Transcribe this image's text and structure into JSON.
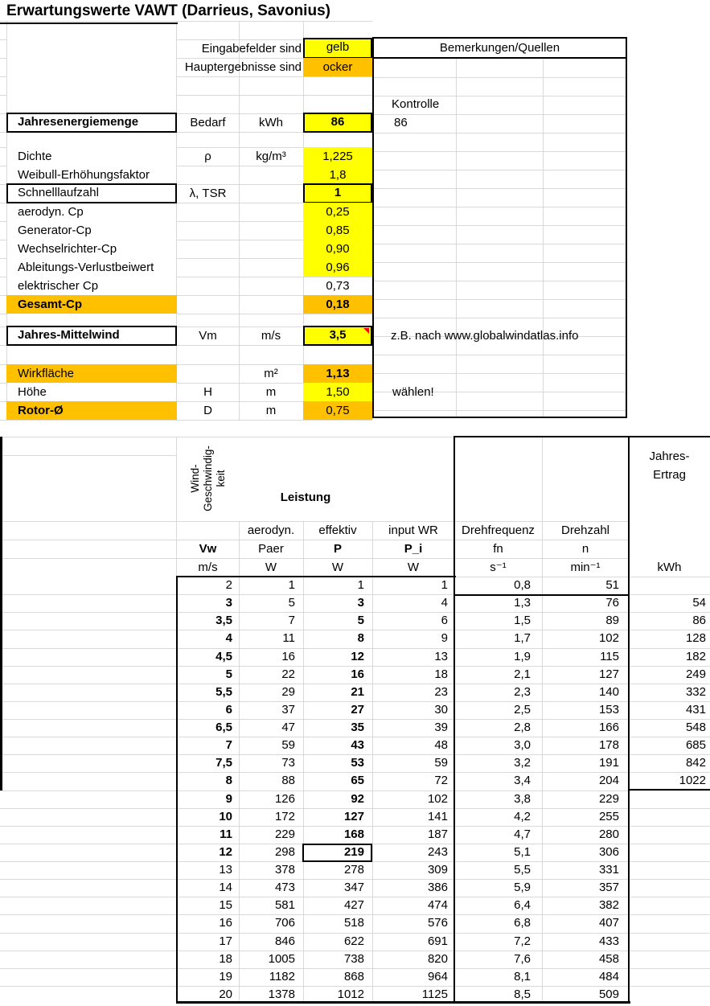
{
  "title": "Erwartungswerte VAWT (Darrieus, Savonius)",
  "legend": {
    "input_label": "Eingabefelder sind",
    "input_value": "gelb",
    "result_label": "Hauptergebnisse sind",
    "result_value": "ocker"
  },
  "remarks": {
    "header": "Bemerkungen/Quellen",
    "control_label": "Kontrolle",
    "control_value": "86",
    "wind_source_note": "z.B. nach www.globalwindatlas.info",
    "height_note": "wählen!"
  },
  "params": {
    "annual_energy": {
      "label": "Jahresenergiemenge",
      "symbol": "Bedarf",
      "unit": "kWh",
      "value": "86"
    },
    "density": {
      "label": "Dichte",
      "symbol": "ρ",
      "unit": "kg/m³",
      "value": "1,225"
    },
    "weibull": {
      "label": "Weibull-Erhöhungsfaktor",
      "symbol": "",
      "unit": "",
      "value": "1,8"
    },
    "tsr": {
      "label": "Schnelllaufzahl",
      "symbol": "λ, TSR",
      "unit": "",
      "value": "1"
    },
    "cp_aero": {
      "label": "aerodyn. Cp",
      "symbol": "",
      "unit": "",
      "value": "0,25"
    },
    "cp_generator": {
      "label": "Generator-Cp",
      "symbol": "",
      "unit": "",
      "value": "0,85"
    },
    "cp_inverter": {
      "label": "Wechselrichter-Cp",
      "symbol": "",
      "unit": "",
      "value": "0,90"
    },
    "cp_line_loss": {
      "label": "Ableitungs-Verlustbeiwert",
      "symbol": "",
      "unit": "",
      "value": "0,96"
    },
    "cp_electric": {
      "label": "elektrischer Cp",
      "symbol": "",
      "unit": "",
      "value": "0,73"
    },
    "cp_total": {
      "label": "Gesamt-Cp",
      "symbol": "",
      "unit": "",
      "value": "0,18"
    },
    "mean_wind": {
      "label": "Jahres-Mittelwind",
      "symbol": "Vm",
      "unit": "m/s",
      "value": "3,5"
    },
    "area": {
      "label": "Wirkfläche",
      "symbol": "",
      "unit": "m²",
      "value": "1,13"
    },
    "height": {
      "label": "Höhe",
      "symbol": "H",
      "unit": "m",
      "value": "1,50"
    },
    "rotor_diameter": {
      "label": "Rotor-Ø",
      "symbol": "D",
      "unit": "m",
      "value": "0,75"
    }
  },
  "colors": {
    "input_yellow": "#FFFF00",
    "result_ocker": "#FFC000",
    "grid_line": "#D9D9D9",
    "comment_red": "#FF0000"
  },
  "table": {
    "group_headers": {
      "wind_speed": "Wind-\nGeschwindig-\nkeit",
      "power": "Leistung",
      "annual_yield": "Jahres-\nErtrag"
    },
    "sub_headers": {
      "paer_type": "aerodyn.",
      "p_type": "effektiv",
      "pi_type": "input WR",
      "fn_label": "Drehfrequenz",
      "n_label": "Drehzahl"
    },
    "symbols": {
      "vw": "Vw",
      "paer": "Paer",
      "p": "P",
      "pi": "P_i",
      "fn": "fn",
      "n": "n"
    },
    "units": {
      "vw": "m/s",
      "paer": "W",
      "p": "W",
      "pi": "W",
      "fn": "s⁻¹",
      "n": "min⁻¹",
      "kwh": "kWh"
    },
    "rows": [
      {
        "vw": "2",
        "paer": "1",
        "p": "1",
        "pi": "1",
        "fn": "0,8",
        "n": "51",
        "kwh": "",
        "bold": false
      },
      {
        "vw": "3",
        "paer": "5",
        "p": "3",
        "pi": "4",
        "fn": "1,3",
        "n": "76",
        "kwh": "54",
        "bold": true
      },
      {
        "vw": "3,5",
        "paer": "7",
        "p": "5",
        "pi": "6",
        "fn": "1,5",
        "n": "89",
        "kwh": "86",
        "bold": true
      },
      {
        "vw": "4",
        "paer": "11",
        "p": "8",
        "pi": "9",
        "fn": "1,7",
        "n": "102",
        "kwh": "128",
        "bold": true
      },
      {
        "vw": "4,5",
        "paer": "16",
        "p": "12",
        "pi": "13",
        "fn": "1,9",
        "n": "115",
        "kwh": "182",
        "bold": true
      },
      {
        "vw": "5",
        "paer": "22",
        "p": "16",
        "pi": "18",
        "fn": "2,1",
        "n": "127",
        "kwh": "249",
        "bold": true
      },
      {
        "vw": "5,5",
        "paer": "29",
        "p": "21",
        "pi": "23",
        "fn": "2,3",
        "n": "140",
        "kwh": "332",
        "bold": true
      },
      {
        "vw": "6",
        "paer": "37",
        "p": "27",
        "pi": "30",
        "fn": "2,5",
        "n": "153",
        "kwh": "431",
        "bold": true
      },
      {
        "vw": "6,5",
        "paer": "47",
        "p": "35",
        "pi": "39",
        "fn": "2,8",
        "n": "166",
        "kwh": "548",
        "bold": true
      },
      {
        "vw": "7",
        "paer": "59",
        "p": "43",
        "pi": "48",
        "fn": "3,0",
        "n": "178",
        "kwh": "685",
        "bold": true
      },
      {
        "vw": "7,5",
        "paer": "73",
        "p": "53",
        "pi": "59",
        "fn": "3,2",
        "n": "191",
        "kwh": "842",
        "bold": true
      },
      {
        "vw": "8",
        "paer": "88",
        "p": "65",
        "pi": "72",
        "fn": "3,4",
        "n": "204",
        "kwh": "1022",
        "bold": true
      },
      {
        "vw": "9",
        "paer": "126",
        "p": "92",
        "pi": "102",
        "fn": "3,8",
        "n": "229",
        "kwh": "",
        "bold": true
      },
      {
        "vw": "10",
        "paer": "172",
        "p": "127",
        "pi": "141",
        "fn": "4,2",
        "n": "255",
        "kwh": "",
        "bold": true
      },
      {
        "vw": "11",
        "paer": "229",
        "p": "168",
        "pi": "187",
        "fn": "4,7",
        "n": "280",
        "kwh": "",
        "bold": true
      },
      {
        "vw": "12",
        "paer": "298",
        "p": "219",
        "pi": "243",
        "fn": "5,1",
        "n": "306",
        "kwh": "",
        "bold": true,
        "selected": true
      },
      {
        "vw": "13",
        "paer": "378",
        "p": "278",
        "pi": "309",
        "fn": "5,5",
        "n": "331",
        "kwh": "",
        "bold": false
      },
      {
        "vw": "14",
        "paer": "473",
        "p": "347",
        "pi": "386",
        "fn": "5,9",
        "n": "357",
        "kwh": "",
        "bold": false
      },
      {
        "vw": "15",
        "paer": "581",
        "p": "427",
        "pi": "474",
        "fn": "6,4",
        "n": "382",
        "kwh": "",
        "bold": false
      },
      {
        "vw": "16",
        "paer": "706",
        "p": "518",
        "pi": "576",
        "fn": "6,8",
        "n": "407",
        "kwh": "",
        "bold": false
      },
      {
        "vw": "17",
        "paer": "846",
        "p": "622",
        "pi": "691",
        "fn": "7,2",
        "n": "433",
        "kwh": "",
        "bold": false
      },
      {
        "vw": "18",
        "paer": "1005",
        "p": "738",
        "pi": "820",
        "fn": "7,6",
        "n": "458",
        "kwh": "",
        "bold": false
      },
      {
        "vw": "19",
        "paer": "1182",
        "p": "868",
        "pi": "964",
        "fn": "8,1",
        "n": "484",
        "kwh": "",
        "bold": false
      },
      {
        "vw": "20",
        "paer": "1378",
        "p": "1012",
        "pi": "1125",
        "fn": "8,5",
        "n": "509",
        "kwh": "",
        "bold": false
      }
    ]
  }
}
